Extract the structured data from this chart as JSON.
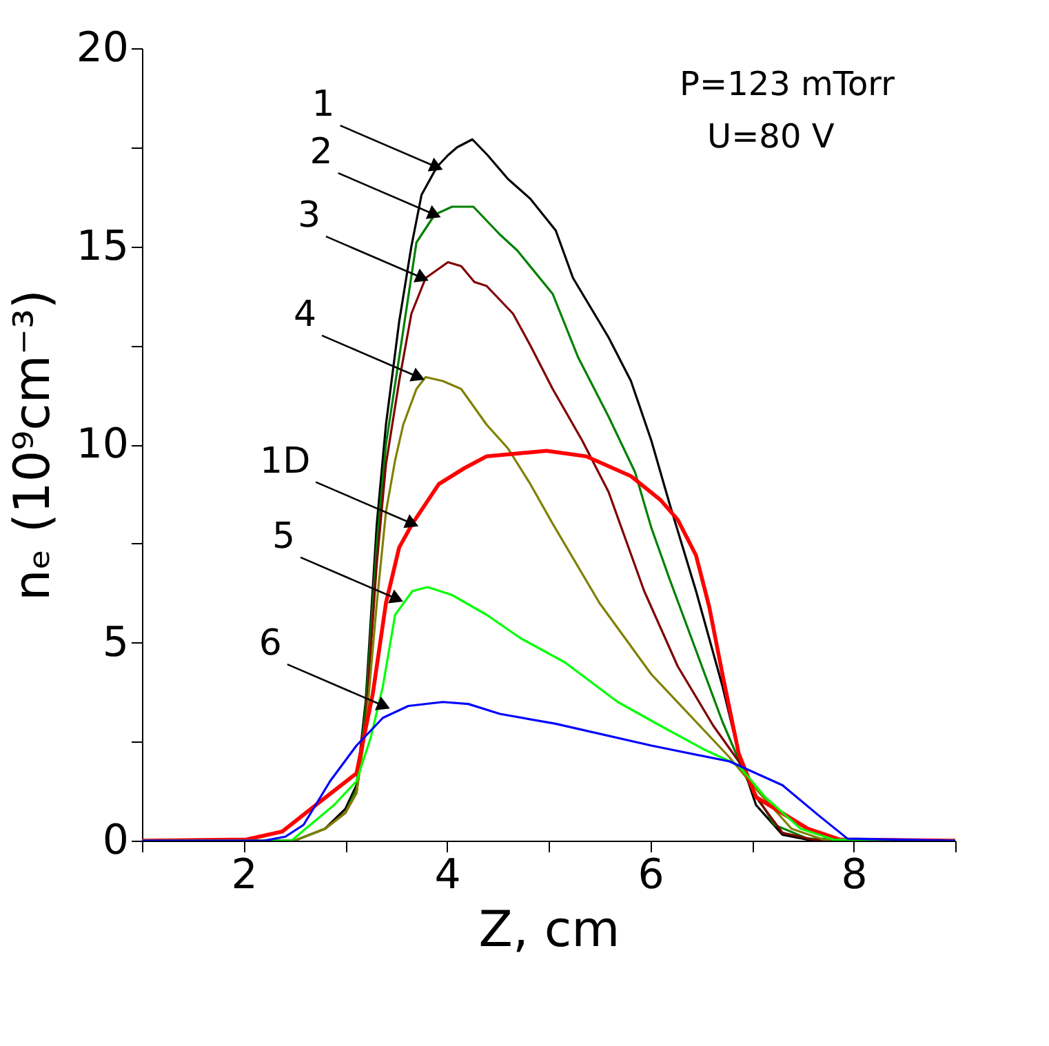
{
  "chart_data": {
    "type": "line",
    "xlabel": "Z, cm",
    "ylabel": "nₑ (10⁹cm⁻³)",
    "xlim": [
      1,
      9
    ],
    "ylim": [
      0,
      20
    ],
    "xticks": [
      {
        "value": 1,
        "label": null
      },
      2,
      {
        "value": 3,
        "label": null
      },
      4,
      {
        "value": 5,
        "label": null
      },
      6,
      {
        "value": 7,
        "label": null
      },
      8,
      {
        "value": 9,
        "label": null
      }
    ],
    "yticks": [
      0,
      {
        "value": 2.5,
        "label": null
      },
      5,
      {
        "value": 7.5,
        "label": null
      },
      10,
      {
        "value": 12.5,
        "label": null
      },
      15,
      {
        "value": 17.5,
        "label": null
      },
      20
    ],
    "grid": false,
    "marker": "none",
    "line_style": "solid",
    "series": [
      {
        "color": "#000000",
        "x": [
          1,
          2.5,
          2.8,
          3.0,
          3.11,
          3.2,
          3.31,
          3.4,
          3.53,
          3.65,
          3.75,
          3.9,
          4.01,
          4.1,
          4.25,
          4.4,
          4.6,
          4.82,
          5.07,
          5.24,
          5.59,
          5.81,
          6.01,
          6.19,
          6.45,
          6.71,
          6.87,
          7.04,
          7.3,
          7.6,
          9
        ],
        "values": [
          0,
          0,
          0.3,
          0.8,
          1.4,
          3.5,
          8,
          10.5,
          13.1,
          15,
          16.3,
          17.0,
          17.3,
          17.5,
          17.7,
          17.3,
          16.7,
          16.2,
          15.4,
          14.2,
          12.7,
          11.6,
          10.1,
          8.5,
          6.3,
          3.9,
          2.2,
          0.9,
          0.15,
          0,
          0
        ]
      },
      {
        "color": "#008000",
        "x": [
          1,
          2.5,
          2.8,
          3.0,
          3.11,
          3.2,
          3.31,
          3.4,
          3.53,
          3.7,
          3.88,
          4.05,
          4.26,
          4.52,
          4.69,
          5.04,
          5.29,
          5.59,
          5.85,
          6.01,
          6.19,
          6.45,
          6.71,
          6.96,
          7.22,
          7.55,
          9
        ],
        "values": [
          0,
          0,
          0.3,
          0.7,
          1.3,
          3.3,
          7.5,
          10,
          12.2,
          15.1,
          15.8,
          16.0,
          16.0,
          15.3,
          14.9,
          13.8,
          12.2,
          10.7,
          9.3,
          7.9,
          6.6,
          4.8,
          3.0,
          1.5,
          0.4,
          0.05,
          0
        ]
      },
      {
        "color": "#800000",
        "x": [
          2.8,
          3.0,
          3.11,
          3.2,
          3.31,
          3.4,
          3.53,
          3.65,
          3.79,
          4.01,
          4.14,
          4.27,
          4.39,
          4.65,
          4.82,
          5.04,
          5.33,
          5.59,
          5.94,
          6.27,
          6.62,
          6.87,
          7.04,
          7.3,
          7.6,
          9
        ],
        "values": [
          0.3,
          0.7,
          1.2,
          3.0,
          7,
          9.5,
          11.6,
          13.3,
          14.2,
          14.6,
          14.5,
          14.1,
          14.0,
          13.3,
          12.5,
          11.4,
          10.1,
          8.8,
          6.3,
          4.4,
          2.9,
          2.0,
          1.1,
          0.2,
          0.03,
          0
        ]
      },
      {
        "color": "#808000",
        "x": [
          1,
          2.5,
          2.8,
          3.0,
          3.11,
          3.2,
          3.31,
          3.4,
          3.49,
          3.57,
          3.7,
          3.79,
          3.96,
          4.14,
          4.39,
          4.6,
          4.82,
          5.04,
          5.5,
          6.01,
          6.45,
          6.78,
          7.04,
          7.39,
          7.7,
          9
        ],
        "values": [
          0,
          0,
          0.3,
          0.7,
          1.2,
          2.8,
          6,
          8.3,
          9.6,
          10.5,
          11.4,
          11.7,
          11.6,
          11.4,
          10.5,
          9.9,
          9.0,
          8.0,
          6.0,
          4.2,
          3.0,
          2.1,
          1.3,
          0.3,
          0.03,
          0
        ]
      },
      {
        "color": "#ff0000",
        "x": [
          1,
          2.03,
          2.38,
          2.76,
          3.11,
          3.27,
          3.4,
          3.53,
          3.66,
          3.92,
          4.17,
          4.39,
          4.98,
          5.37,
          5.81,
          6.1,
          6.27,
          6.45,
          6.58,
          6.71,
          6.87,
          7.04,
          7.55,
          7.86,
          9
        ],
        "values": [
          0,
          0.03,
          0.23,
          1.0,
          1.7,
          3.7,
          6.0,
          7.4,
          8.0,
          9.0,
          9.4,
          9.7,
          9.84,
          9.7,
          9.2,
          8.6,
          8.1,
          7.2,
          5.9,
          4.2,
          2.2,
          1.1,
          0.3,
          0.03,
          0
        ]
      },
      {
        "color": "#00ff00",
        "x": [
          1,
          2.47,
          2.89,
          3.11,
          3.25,
          3.37,
          3.49,
          3.66,
          3.81,
          4.05,
          4.39,
          4.73,
          5.16,
          5.68,
          6.1,
          6.53,
          6.87,
          7.13,
          7.48,
          7.8,
          9
        ],
        "values": [
          0,
          0,
          0.9,
          1.5,
          2.6,
          3.9,
          5.7,
          6.3,
          6.4,
          6.2,
          5.7,
          5.1,
          4.5,
          3.5,
          2.9,
          2.3,
          1.9,
          1.1,
          0.3,
          0.03,
          0
        ]
      },
      {
        "color": "#0000ff",
        "x": [
          1,
          2.2,
          2.41,
          2.59,
          2.85,
          3.11,
          3.37,
          3.62,
          3.96,
          4.21,
          4.52,
          5.07,
          6.01,
          6.78,
          7.3,
          7.65,
          7.94,
          9
        ],
        "values": [
          0,
          0,
          0.1,
          0.4,
          1.5,
          2.4,
          3.1,
          3.4,
          3.5,
          3.45,
          3.2,
          2.95,
          2.4,
          2.0,
          1.4,
          0.65,
          0.05,
          0
        ]
      }
    ],
    "annotations": [
      {
        "text": "1",
        "x": 3.9,
        "y": 17.0
      },
      {
        "text": "2",
        "x": 3.88,
        "y": 15.8
      },
      {
        "text": "3",
        "x": 3.76,
        "y": 14.2
      },
      {
        "text": "4",
        "x": 3.72,
        "y": 11.7
      },
      {
        "text": "1D",
        "x": 3.66,
        "y": 8.0
      },
      {
        "text": "5",
        "x": 3.51,
        "y": 6.1
      },
      {
        "text": "6",
        "x": 3.38,
        "y": 3.4
      },
      "P=123 mTorr",
      "U=80 V"
    ]
  }
}
